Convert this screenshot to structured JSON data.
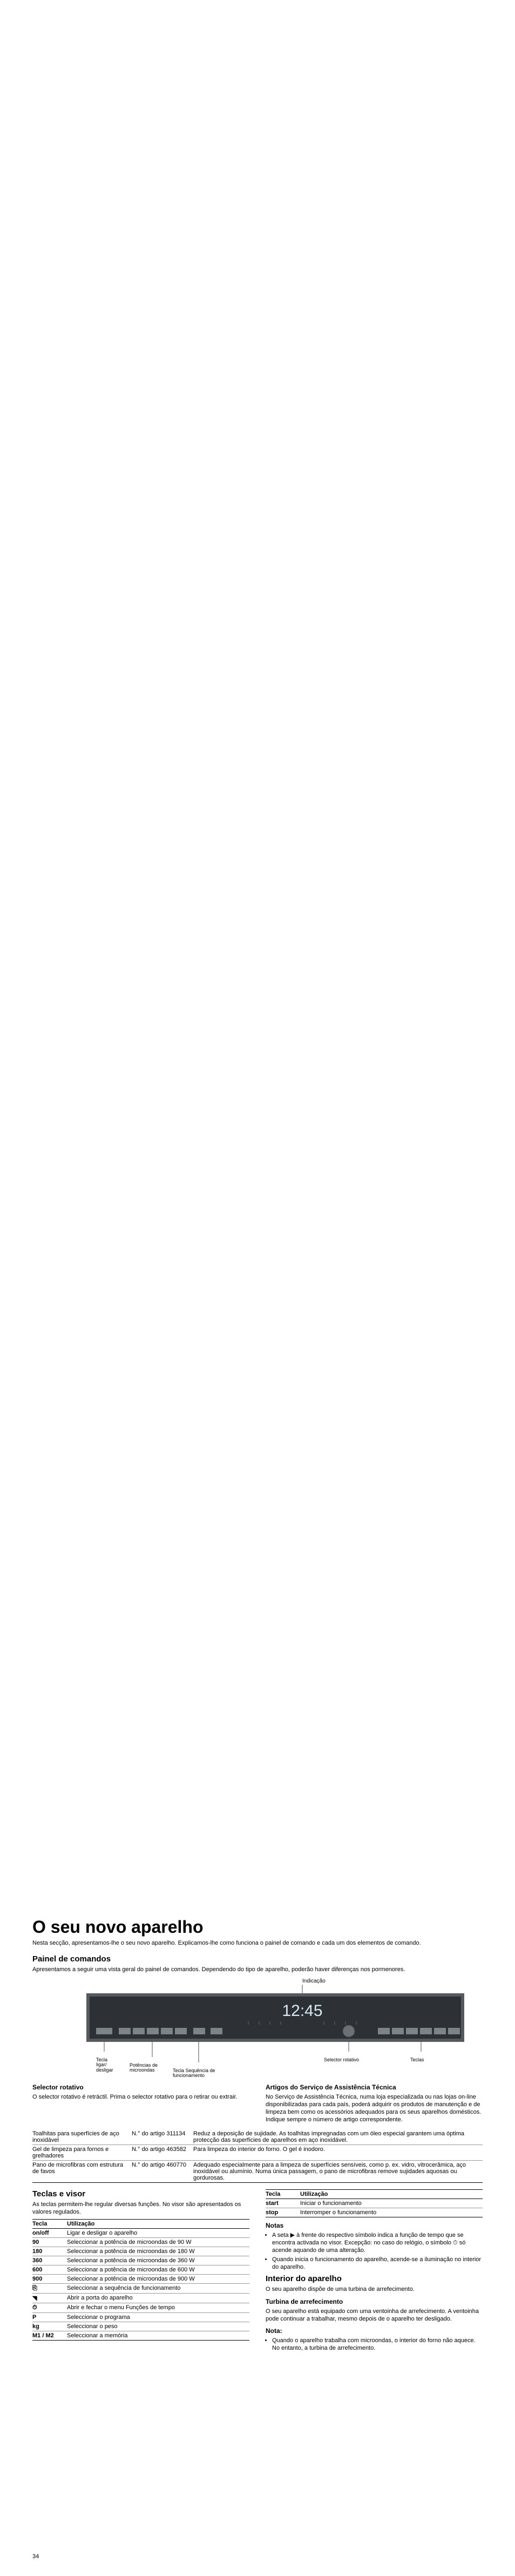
{
  "page_number": "34",
  "title": "O seu novo aparelho",
  "intro": "Nesta secção, apresentamos-lhe o seu novo aparelho. Explicamos-lhe como funciona o painel de comando e cada um dos elementos de comando.",
  "painel": {
    "heading": "Painel de comandos",
    "text": "Apresentamos a seguir uma vista geral do painel de comandos. Dependendo do tipo de aparelho, poderão haver diferenças nos pormenores.",
    "labels": {
      "indicacao": "Indicação",
      "tecla_ligar": "Tecla ligar/ desligar",
      "potencias": "Potências de microondas",
      "tecla_seq": "Tecla Sequência de funcionamento",
      "selector": "Selector rotativo",
      "teclas": "Teclas"
    },
    "display_time": "12:45",
    "panel_colors": {
      "bg": "#555a5f",
      "inner": "#2d3135",
      "text": "#d6e8f0",
      "line": "#000000"
    }
  },
  "selector": {
    "heading": "Selector rotativo",
    "text": "O selector rotativo é retráctil. Prima o selector rotativo para o retirar ou extrair."
  },
  "artigos": {
    "heading": "Artigos do Serviço de Assistência Técnica",
    "text": "No Serviço de Assistência Técnica, numa loja especializada ou nas lojas on-line disponibilizadas para cada país, poderá adquirir os produtos de manutenção e de limpeza bem como os acessórios adequados para os seus aparelhos domésticos. Indique sempre o número de artigo correspondente.",
    "rows": [
      {
        "a": "Toalhitas para superfícies de aço inoxidável",
        "b": "N.° do artigo 311134",
        "c": "Reduz a deposição de sujidade. As toalhitas impregnadas com um óleo especial garantem uma óptima protecção das superfícies de aparelhos em aço inoxidável."
      },
      {
        "a": "Gel de limpeza para fornos e grelhadores",
        "b": "N.° do artigo 463582",
        "c": "Para limpeza do interior do forno. O gel é inodoro."
      },
      {
        "a": "Pano de microfibras com estrutura de favos",
        "b": "N.° do artigo 460770",
        "c": "Adequado especialmente para a limpeza de superfícies sensíveis, como p. ex. vidro, vitrocerâmica, aço inoxidável ou alumínio. Numa única passagem, o pano de microfibras remove sujidades aquosas ou gordurosas."
      }
    ]
  },
  "teclas": {
    "heading": "Teclas e visor",
    "text": "As teclas permitem-lhe regular diversas funções. No visor são apresentados os valores regulados.",
    "rows_left": [
      {
        "a": "on/off",
        "b": "Ligar e desligar o aparelho"
      },
      {
        "a": "90",
        "b": "Seleccionar a potência de microondas de 90 W"
      },
      {
        "a": "180",
        "b": "Seleccionar a potência de microondas de 180 W"
      },
      {
        "a": "360",
        "b": "Seleccionar a potência de microondas de 360 W"
      },
      {
        "a": "600",
        "b": "Seleccionar a potência de microondas de 600 W"
      },
      {
        "a": "900",
        "b": "Seleccionar a potência de microondas de 900 W"
      },
      {
        "a": "⎘",
        "b": "Seleccionar a sequência de funcionamento"
      },
      {
        "a": "◥",
        "b": "Abrir a porta do aparelho"
      },
      {
        "a": "⏱",
        "b": "Abrir e fechar o menu Funções de tempo"
      },
      {
        "a": "P",
        "b": "Seleccionar o programa"
      },
      {
        "a": "kg",
        "b": "Seleccionar o peso"
      },
      {
        "a": "M1 / M2",
        "b": "Seleccionar a memória"
      }
    ],
    "rows_right": [
      {
        "a": "start",
        "b": "Iniciar o funcionamento"
      },
      {
        "a": "stop",
        "b": "Interromper o funcionamento"
      }
    ]
  },
  "notas": {
    "heading": "Notas",
    "items": [
      "A seta ▶ à frente do respectivo símbolo indica a função de tempo que se encontra activada no visor. Excepção: no caso do relógio, o símbolo ⏱ só acende aquando de uma alteração.",
      "Quando inicia o funcionamento do aparelho, acende-se a iluminação no interior do aparelho."
    ]
  },
  "interior": {
    "heading": "Interior do aparelho",
    "text": "O seu aparelho dispõe de uma turbina de arrefecimento.",
    "sub": "Turbina de arrefecimento",
    "subtext": "O seu aparelho está equipado com uma ventoinha de arrefecimento. A ventoinha pode continuar a trabalhar, mesmo depois de o aparelho ter desligado."
  },
  "nota": {
    "heading": "Nota:",
    "items": [
      "Quando o aparelho trabalha com microondas, o interior do forno não aquece. No entanto, a turbina de arrefecimento."
    ]
  },
  "table_headers": {
    "tecla": "Tecla",
    "utilizacao": "Utilização"
  }
}
